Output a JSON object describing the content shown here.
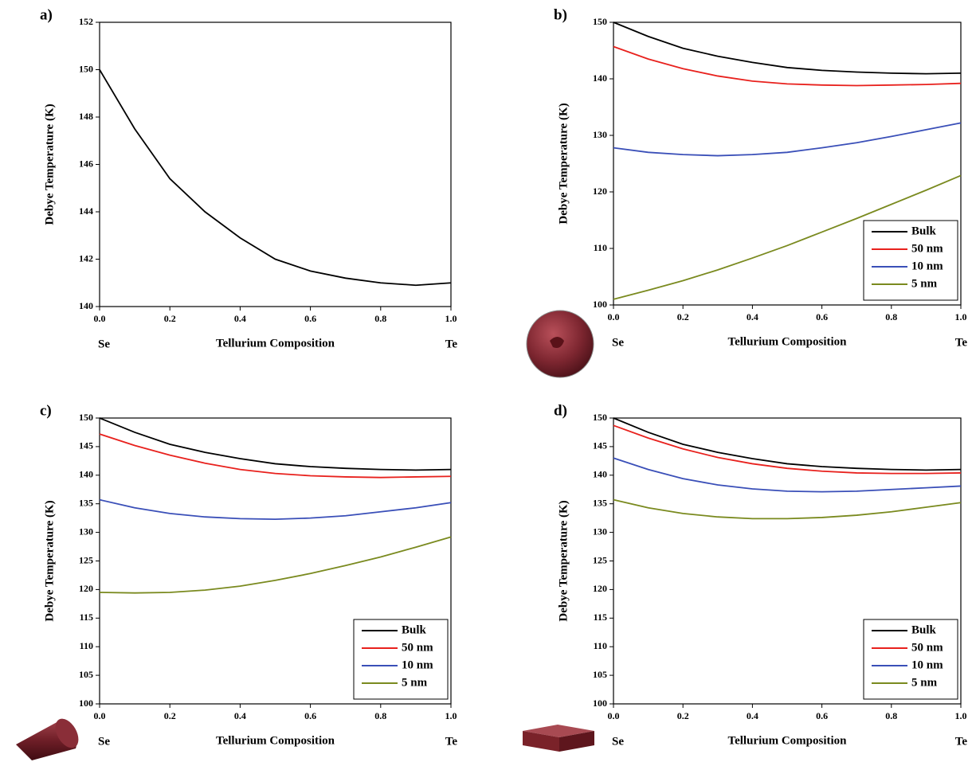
{
  "chart_data": [
    {
      "type": "line",
      "panel": "a)",
      "xlabel": "Tellurium Composition",
      "ylabel": "Debye Temperature (K)",
      "x_start_label": "Se",
      "x_end_label": "Te",
      "x": [
        0,
        0.1,
        0.2,
        0.3,
        0.4,
        0.5,
        0.6,
        0.7,
        0.8,
        0.9,
        1.0
      ],
      "values": [
        150,
        147.5,
        145.4,
        144.0,
        142.9,
        142.0,
        141.5,
        141.2,
        141.0,
        140.9,
        141.0
      ],
      "color": "#000000",
      "xlim": [
        0,
        1
      ],
      "xticks": [
        {
          "value": 0,
          "label": "0.0"
        },
        0.2,
        0.4,
        0.6,
        0.8,
        {
          "value": 1,
          "label": "1.0"
        }
      ],
      "ylim": [
        140,
        152
      ],
      "yticks": [
        140,
        142,
        144,
        146,
        148,
        150,
        152
      ]
    },
    {
      "type": "line",
      "panel": "b)",
      "xlabel": "Tellurium Composition",
      "ylabel": "Debye Temperature (K)",
      "x_start_label": "Se",
      "x_end_label": "Te",
      "x": [
        0,
        0.1,
        0.2,
        0.3,
        0.4,
        0.5,
        0.6,
        0.7,
        0.8,
        0.9,
        1.0
      ],
      "series": [
        {
          "name": "Bulk",
          "color": "#000000",
          "values": [
            150,
            147.5,
            145.4,
            144.0,
            142.9,
            142.0,
            141.5,
            141.2,
            141.0,
            140.9,
            141.0
          ]
        },
        {
          "name": "50 nm",
          "color": "#e8211d",
          "values": [
            145.7,
            143.5,
            141.8,
            140.5,
            139.6,
            139.1,
            138.9,
            138.8,
            138.9,
            139.0,
            139.2
          ]
        },
        {
          "name": "10 nm",
          "color": "#3a4fb8",
          "values": [
            127.8,
            127.0,
            126.6,
            126.4,
            126.6,
            127.0,
            127.8,
            128.7,
            129.8,
            131.0,
            132.2
          ]
        },
        {
          "name": "5 nm",
          "color": "#7a8a1f",
          "values": [
            101,
            102.6,
            104.3,
            106.2,
            108.3,
            110.5,
            112.9,
            115.3,
            117.8,
            120.3,
            122.9
          ]
        }
      ],
      "xlim": [
        0,
        1
      ],
      "xticks": [
        {
          "value": 0,
          "label": "0.0"
        },
        0.2,
        0.4,
        0.6,
        0.8,
        {
          "value": 1,
          "label": "1.0"
        }
      ],
      "ylim": [
        100,
        150
      ],
      "yticks": [
        100,
        110,
        120,
        130,
        140,
        150
      ]
    },
    {
      "type": "line",
      "panel": "c)",
      "xlabel": "Tellurium Composition",
      "ylabel": "Debye Temperature (K)",
      "x_start_label": "Se",
      "x_end_label": "Te",
      "x": [
        0,
        0.1,
        0.2,
        0.3,
        0.4,
        0.5,
        0.6,
        0.7,
        0.8,
        0.9,
        1.0
      ],
      "series": [
        {
          "name": "Bulk",
          "color": "#000000",
          "values": [
            150,
            147.5,
            145.4,
            144.0,
            142.9,
            142.0,
            141.5,
            141.2,
            141.0,
            140.9,
            141.0
          ]
        },
        {
          "name": "50 nm",
          "color": "#e8211d",
          "values": [
            147.2,
            145.2,
            143.5,
            142.1,
            141.0,
            140.3,
            139.9,
            139.7,
            139.6,
            139.7,
            139.8
          ]
        },
        {
          "name": "10 nm",
          "color": "#3a4fb8",
          "values": [
            135.7,
            134.3,
            133.3,
            132.7,
            132.4,
            132.3,
            132.5,
            132.9,
            133.6,
            134.3,
            135.2
          ]
        },
        {
          "name": "5 nm",
          "color": "#7a8a1f",
          "values": [
            119.5,
            119.4,
            119.5,
            119.9,
            120.6,
            121.6,
            122.8,
            124.2,
            125.7,
            127.4,
            129.2
          ]
        }
      ],
      "xlim": [
        0,
        1
      ],
      "xticks": [
        {
          "value": 0,
          "label": "0.0"
        },
        0.2,
        0.4,
        0.6,
        0.8,
        {
          "value": 1,
          "label": "1.0"
        }
      ],
      "ylim": [
        100,
        150
      ],
      "yticks": [
        100,
        105,
        110,
        115,
        120,
        125,
        130,
        135,
        140,
        145,
        150
      ]
    },
    {
      "type": "line",
      "panel": "d)",
      "xlabel": "Tellurium Composition",
      "ylabel": "Debye Temperature (K)",
      "x_start_label": "Se",
      "x_end_label": "Te",
      "x": [
        0,
        0.1,
        0.2,
        0.3,
        0.4,
        0.5,
        0.6,
        0.7,
        0.8,
        0.9,
        1.0
      ],
      "series": [
        {
          "name": "Bulk",
          "color": "#000000",
          "values": [
            150,
            147.5,
            145.4,
            144.0,
            142.9,
            142.0,
            141.5,
            141.2,
            141.0,
            140.9,
            141.0
          ]
        },
        {
          "name": "50 nm",
          "color": "#e8211d",
          "values": [
            148.7,
            146.5,
            144.6,
            143.1,
            142.0,
            141.2,
            140.7,
            140.4,
            140.3,
            140.3,
            140.4
          ]
        },
        {
          "name": "10 nm",
          "color": "#3a4fb8",
          "values": [
            143.0,
            141.0,
            139.4,
            138.3,
            137.6,
            137.2,
            137.1,
            137.2,
            137.5,
            137.8,
            138.1
          ]
        },
        {
          "name": "5 nm",
          "color": "#7a8a1f",
          "values": [
            135.7,
            134.3,
            133.3,
            132.7,
            132.4,
            132.4,
            132.6,
            133.0,
            133.6,
            134.4,
            135.2
          ]
        }
      ],
      "xlim": [
        0,
        1
      ],
      "xticks": [
        {
          "value": 0,
          "label": "0.0"
        },
        0.2,
        0.4,
        0.6,
        0.8,
        {
          "value": 1,
          "label": "1.0"
        }
      ],
      "ylim": [
        100,
        150
      ],
      "yticks": [
        100,
        105,
        110,
        115,
        120,
        125,
        130,
        135,
        140,
        145,
        150
      ]
    }
  ]
}
